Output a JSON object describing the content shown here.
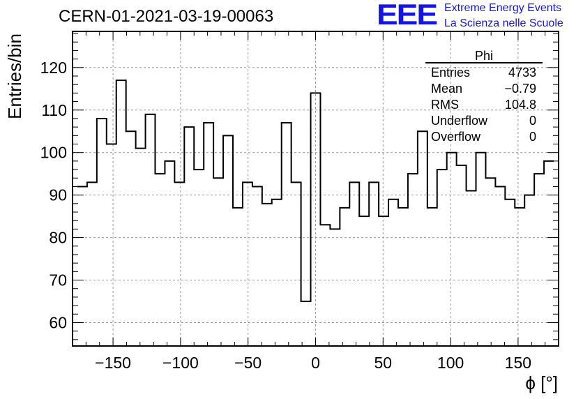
{
  "header": {
    "run_title": "CERN-01-2021-03-19-00063",
    "logo_text": "EEE",
    "logo_line1": "Extreme Energy Events",
    "logo_line2": "La Scienza nelle Scuole"
  },
  "stats_box": {
    "name": "Phi",
    "rows": [
      {
        "label": "Entries",
        "value": "4733"
      },
      {
        "label": "Mean",
        "value": "−0.79"
      },
      {
        "label": "RMS",
        "value": "104.8"
      },
      {
        "label": "Underflow",
        "value": "0"
      },
      {
        "label": "Overflow",
        "value": "0"
      }
    ]
  },
  "chart_data": {
    "type": "histogram",
    "xlabel": "ϕ [°]",
    "ylabel": "Entries/bin",
    "xlim": [
      -180,
      180
    ],
    "ylim": [
      54.5,
      128.5
    ],
    "x_ticks": [
      -150,
      -100,
      -50,
      0,
      50,
      100,
      150
    ],
    "x_tick_labels": [
      "−150",
      "−100",
      "−50",
      "0",
      "50",
      "100",
      "150"
    ],
    "y_ticks": [
      60,
      70,
      80,
      90,
      100,
      110,
      120
    ],
    "y_tick_labels": [
      "60",
      "70",
      "80",
      "90",
      "100",
      "110",
      "120"
    ],
    "grid": true,
    "line_color": "#000000",
    "bin_edges": [
      -176.4,
      -169.2,
      -162,
      -154.8,
      -147.6,
      -140.4,
      -133.2,
      -126,
      -118.8,
      -111.6,
      -104.4,
      -97.2,
      -90,
      -82.8,
      -75.6,
      -68.4,
      -61.2,
      -54,
      -46.8,
      -39.6,
      -32.4,
      -25.2,
      -18,
      -10.8,
      -3.6,
      3.6,
      10.8,
      18,
      25.2,
      32.4,
      39.6,
      46.8,
      54,
      61.2,
      68.4,
      75.6,
      82.8,
      90,
      97.2,
      104.4,
      111.6,
      118.8,
      126,
      133.2,
      140.4,
      147.6,
      154.8,
      162,
      169.2,
      176.4
    ],
    "counts": [
      92,
      93,
      108,
      102,
      117,
      105,
      101,
      109,
      95,
      98,
      93,
      106,
      96,
      107,
      94,
      104,
      87,
      93,
      92,
      88,
      89,
      107,
      93,
      65,
      114,
      83,
      82,
      87,
      93,
      85,
      93,
      85,
      89,
      87,
      95,
      105,
      87,
      96,
      100,
      97,
      91,
      100,
      94,
      92,
      89,
      87,
      90,
      95,
      98
    ]
  }
}
